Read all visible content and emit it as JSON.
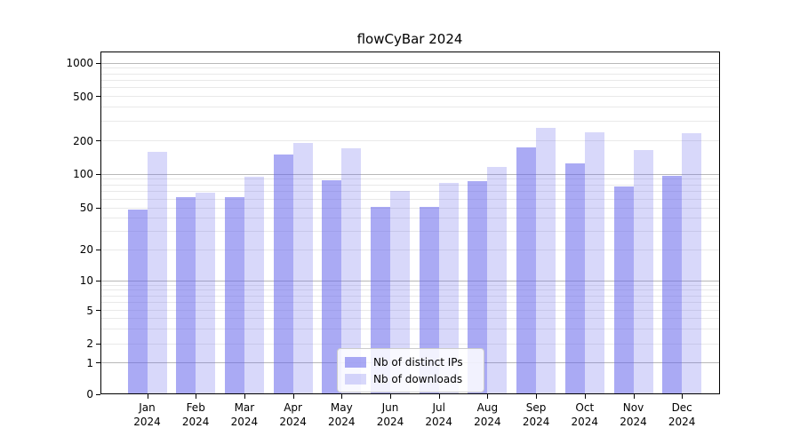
{
  "title": "flowCyBar 2024",
  "colors": {
    "bar_ips": "rgba(100,100,235,0.55)",
    "bar_downloads": "rgba(100,100,235,0.25)",
    "grid_major": "#b8b8b8",
    "grid_minor": "#e9e9e9",
    "spine": "#000000"
  },
  "chart_data": {
    "type": "bar",
    "title": "flowCyBar 2024",
    "categories": [
      "Jan",
      "Feb",
      "Mar",
      "Apr",
      "May",
      "Jun",
      "Jul",
      "Aug",
      "Sep",
      "Oct",
      "Nov",
      "Dec"
    ],
    "category_year": "2024",
    "series": [
      {
        "name": "Nb of distinct IPs",
        "color": "rgba(100,100,235,0.55)",
        "values": [
          48,
          62,
          62,
          151,
          88,
          51,
          51,
          86,
          174,
          124,
          78,
          97
        ]
      },
      {
        "name": "Nb of downloads",
        "color": "rgba(100,100,235,0.25)",
        "values": [
          158,
          68,
          94,
          190,
          172,
          71,
          83,
          117,
          260,
          238,
          166,
          235
        ]
      }
    ],
    "xlabel": "",
    "ylabel": "",
    "y_axis": {
      "scale": "symlog",
      "tick_values": [
        0,
        1,
        2,
        5,
        10,
        20,
        50,
        100,
        200,
        500,
        1000
      ],
      "tick_labels": [
        "0",
        "1",
        "2",
        "5",
        "10",
        "20",
        "50",
        "100",
        "200",
        "500",
        "1000"
      ],
      "major_grid_values": [
        1,
        10,
        100,
        1000
      ],
      "ylim": [
        0,
        1300
      ]
    },
    "grid": true,
    "legend": {
      "position": "lower center",
      "entries": [
        "Nb of distinct IPs",
        "Nb of downloads"
      ]
    }
  }
}
